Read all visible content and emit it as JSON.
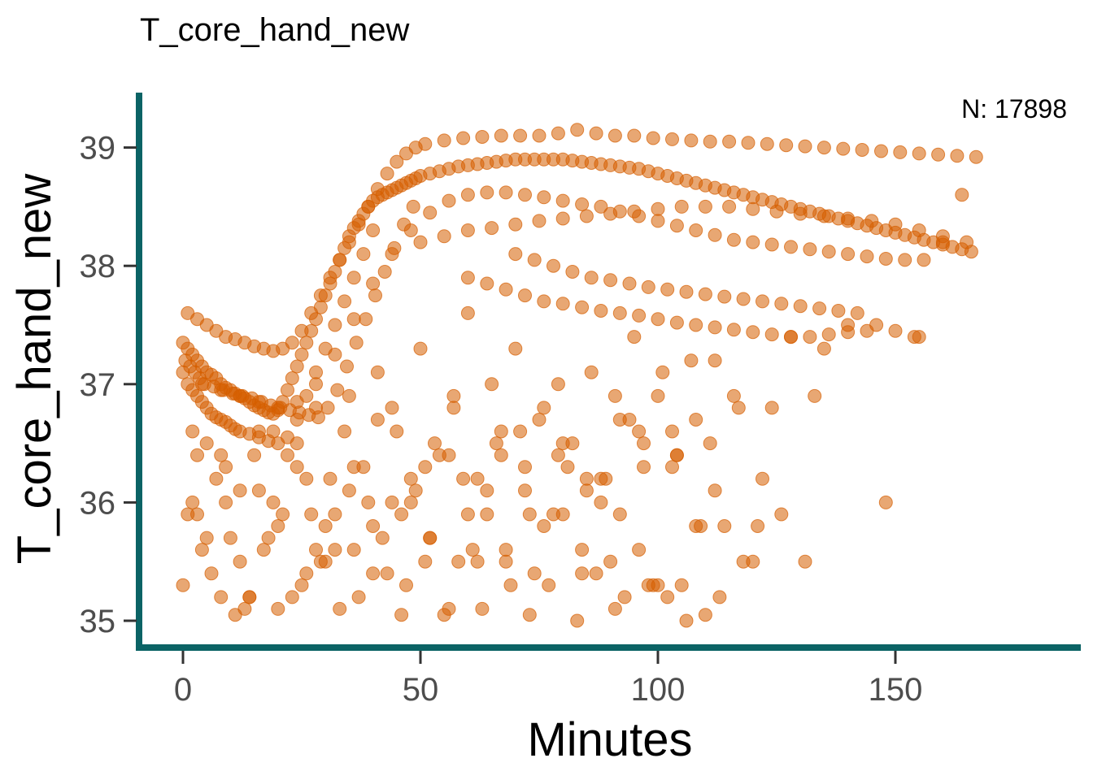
{
  "chart_data": {
    "type": "scatter",
    "title": "T_core_hand_new",
    "xlabel": "Minutes",
    "ylabel": "T_core_hand_new",
    "annotation": "N: 17898",
    "xlim": [
      -8,
      190
    ],
    "ylim": [
      34.8,
      39.45
    ],
    "x_ticks": [
      0,
      50,
      100,
      150
    ],
    "y_ticks": [
      35,
      36,
      37,
      38,
      39
    ],
    "x_tick_labels": [
      "0",
      "50",
      "100",
      "150"
    ],
    "y_tick_labels": [
      "35",
      "36",
      "37",
      "38",
      "39"
    ],
    "grid": false,
    "legend": "none",
    "colors": {
      "points": "#d55e00",
      "axis": "#0b6365",
      "tick_label": "#4d4d4d"
    },
    "series": [
      {
        "x": [
          0,
          1,
          2,
          3,
          4,
          5,
          6,
          7,
          8,
          9,
          10,
          11,
          12,
          13,
          14,
          15,
          16,
          17,
          18,
          19,
          20,
          21,
          22,
          23,
          24,
          25,
          26,
          27,
          28,
          29,
          30,
          31,
          32,
          33,
          34,
          35,
          36,
          37,
          38,
          39,
          40,
          41,
          42,
          43,
          44,
          45,
          46,
          47,
          48,
          49,
          50,
          52,
          54,
          56,
          58,
          60,
          62,
          64,
          66,
          68,
          70,
          72,
          74,
          76,
          78,
          80,
          82,
          84,
          86,
          88,
          90,
          92,
          94,
          96,
          98,
          100,
          102,
          104,
          106,
          108,
          110,
          112,
          114,
          116,
          118,
          120,
          122,
          124,
          126,
          128,
          130,
          132,
          134,
          136,
          138,
          140,
          142,
          144,
          146,
          148,
          150,
          152,
          154,
          156,
          158,
          160,
          162,
          164,
          166,
          1,
          3,
          5,
          7,
          9,
          11,
          13,
          15,
          17,
          19,
          21,
          23,
          25,
          27,
          29,
          31,
          33,
          35,
          37,
          39,
          41,
          43,
          45,
          47,
          49,
          51,
          55,
          59,
          63,
          67,
          71,
          75,
          79,
          83,
          87,
          91,
          95,
          99,
          103,
          107,
          111,
          115,
          119,
          123,
          127,
          131,
          135,
          139,
          143,
          147,
          151,
          155,
          159,
          163,
          167,
          60,
          64,
          68,
          72,
          76,
          80,
          84,
          88,
          92,
          96,
          100,
          104,
          108,
          112,
          116,
          120,
          124,
          128,
          132,
          136,
          140,
          144,
          70,
          74,
          78,
          82,
          86,
          90,
          94,
          98,
          102,
          106,
          110,
          114,
          118,
          122,
          126,
          130,
          134,
          138,
          142,
          146,
          150,
          154,
          0,
          4,
          8,
          12,
          16,
          20,
          24,
          28,
          32,
          36,
          40,
          44,
          48,
          52,
          56,
          60,
          64,
          68,
          72,
          76,
          80,
          84,
          88,
          92,
          96,
          100,
          104,
          108,
          112,
          116,
          120,
          124,
          128,
          132,
          136,
          140,
          144,
          148,
          152,
          156,
          160,
          164,
          1,
          2,
          3,
          4,
          5,
          6,
          7,
          8,
          9,
          10,
          11,
          12,
          14,
          16,
          18,
          20,
          22,
          24,
          26,
          28,
          30,
          32,
          34,
          36,
          38,
          40,
          0.5,
          1.5,
          2.5,
          3.5,
          4.5,
          6.5,
          8.5,
          10.5,
          12.5,
          14.5,
          16.5,
          18.5,
          20.5,
          22.5,
          24.5,
          26.5,
          28.5,
          30.5,
          32.5,
          34.5,
          36.5,
          38.5,
          40.5,
          42.5,
          44.5,
          46.5,
          48.5,
          50,
          55,
          60,
          65,
          70,
          75,
          80,
          85,
          90,
          95,
          100,
          105,
          110,
          115,
          120,
          125,
          130,
          135,
          140,
          145,
          150,
          155,
          160,
          165
        ],
        "y": [
          37.35,
          37.3,
          37.25,
          37.2,
          37.15,
          37.1,
          37.08,
          37.05,
          37.0,
          36.97,
          36.95,
          36.92,
          36.9,
          36.88,
          36.85,
          36.82,
          36.8,
          36.78,
          36.76,
          36.75,
          36.78,
          36.85,
          36.95,
          37.05,
          37.15,
          37.25,
          37.35,
          37.45,
          37.55,
          37.65,
          37.75,
          37.85,
          37.95,
          38.05,
          38.15,
          38.25,
          38.32,
          38.38,
          38.44,
          38.5,
          38.55,
          38.58,
          38.6,
          38.62,
          38.64,
          38.66,
          38.68,
          38.7,
          38.72,
          38.74,
          38.76,
          38.78,
          38.8,
          38.82,
          38.84,
          38.85,
          38.86,
          38.87,
          38.88,
          38.89,
          38.9,
          38.9,
          38.9,
          38.9,
          38.9,
          38.9,
          38.89,
          38.88,
          38.87,
          38.86,
          38.85,
          38.84,
          38.83,
          38.82,
          38.8,
          38.78,
          38.76,
          38.74,
          38.72,
          38.7,
          38.68,
          38.66,
          38.64,
          38.62,
          38.6,
          38.58,
          38.56,
          38.54,
          38.52,
          38.5,
          38.48,
          38.46,
          38.44,
          38.42,
          38.4,
          38.38,
          38.36,
          38.34,
          38.32,
          38.3,
          38.28,
          38.26,
          38.24,
          38.22,
          38.2,
          38.18,
          38.16,
          38.14,
          38.12,
          37.6,
          37.55,
          37.5,
          37.45,
          37.4,
          37.38,
          37.35,
          37.32,
          37.3,
          37.28,
          37.3,
          37.35,
          37.45,
          37.6,
          37.75,
          37.9,
          38.05,
          38.2,
          38.35,
          38.5,
          38.65,
          38.78,
          38.88,
          38.95,
          39.0,
          39.03,
          39.06,
          39.08,
          39.09,
          39.1,
          39.1,
          39.1,
          39.12,
          39.15,
          39.12,
          39.1,
          39.1,
          39.08,
          39.07,
          39.06,
          39.05,
          39.05,
          39.04,
          39.03,
          39.02,
          39.01,
          39.0,
          38.99,
          38.98,
          38.97,
          38.96,
          38.95,
          38.94,
          38.93,
          38.92,
          37.9,
          37.85,
          37.8,
          37.75,
          37.7,
          37.68,
          37.65,
          37.62,
          37.6,
          37.58,
          37.55,
          37.52,
          37.5,
          37.48,
          37.46,
          37.44,
          37.42,
          37.4,
          37.4,
          37.42,
          37.44,
          37.45,
          38.1,
          38.05,
          38.0,
          37.95,
          37.9,
          37.88,
          37.85,
          37.82,
          37.8,
          37.78,
          37.76,
          37.74,
          37.72,
          37.7,
          37.68,
          37.66,
          37.64,
          37.62,
          37.6,
          37.5,
          37.45,
          37.4,
          37.1,
          37.0,
          36.95,
          36.9,
          36.85,
          36.8,
          36.85,
          37.0,
          37.25,
          37.55,
          37.85,
          38.1,
          38.3,
          38.45,
          38.55,
          38.6,
          38.62,
          38.62,
          38.6,
          38.58,
          38.55,
          38.52,
          38.5,
          38.46,
          38.42,
          38.38,
          38.34,
          38.3,
          38.26,
          38.22,
          38.2,
          38.18,
          38.16,
          38.14,
          38.12,
          38.1,
          38.08,
          38.06,
          38.05,
          38.05,
          38.2,
          38.6,
          37.0,
          36.95,
          36.9,
          36.85,
          36.8,
          36.75,
          36.72,
          36.7,
          36.68,
          36.65,
          36.62,
          36.6,
          36.58,
          36.55,
          36.52,
          36.5,
          36.55,
          36.7,
          36.9,
          37.1,
          37.3,
          37.5,
          37.7,
          37.9,
          38.1,
          38.3,
          37.2,
          37.15,
          37.1,
          37.05,
          37.0,
          36.98,
          36.95,
          36.92,
          36.9,
          36.88,
          36.85,
          36.82,
          36.8,
          36.78,
          36.76,
          36.74,
          36.72,
          36.8,
          36.95,
          37.15,
          37.35,
          37.55,
          37.75,
          37.95,
          38.15,
          38.35,
          38.5,
          38.2,
          38.25,
          38.3,
          38.32,
          38.35,
          38.38,
          38.4,
          38.42,
          38.44,
          38.46,
          38.48,
          38.5,
          38.5,
          38.5,
          38.48,
          38.46,
          38.44,
          38.42,
          38.4,
          38.38,
          38.35,
          38.3,
          38.25,
          38.2
        ]
      },
      {
        "x": [
          0,
          2,
          3,
          5,
          6,
          8,
          9,
          11,
          12,
          14,
          16,
          18,
          20,
          22,
          25,
          27,
          28,
          30,
          31,
          33,
          35,
          36,
          38,
          40,
          41,
          43,
          45,
          46,
          48,
          50,
          52,
          53,
          55,
          57,
          58,
          60,
          62,
          63,
          65,
          67,
          68,
          70,
          72,
          73,
          75,
          77,
          79,
          80,
          82,
          84,
          86,
          88,
          90,
          92,
          93,
          95,
          97,
          99,
          101,
          103,
          105,
          108,
          110,
          112,
          114,
          117,
          120,
          122,
          124,
          126,
          128,
          131,
          133,
          135,
          140,
          148,
          155,
          1,
          4,
          7,
          10,
          13,
          15,
          17,
          19,
          21,
          23,
          24,
          26,
          29,
          32,
          34,
          37,
          39,
          42,
          44,
          47,
          49,
          51,
          54,
          56,
          59,
          61,
          64,
          66,
          69,
          71,
          74,
          76,
          78,
          81,
          83,
          85,
          87,
          89,
          91,
          94,
          96,
          98,
          100,
          102,
          104,
          106,
          107,
          109,
          111,
          113,
          116,
          118,
          121,
          2,
          5,
          8,
          12,
          16,
          20,
          24,
          28,
          32,
          36,
          40,
          44,
          48,
          52,
          56,
          60,
          64,
          68,
          72,
          76,
          80,
          84,
          88,
          92,
          96,
          100,
          104,
          108,
          112,
          3,
          9,
          14,
          19,
          26,
          30,
          35,
          41,
          46,
          51,
          57,
          62,
          67,
          73,
          79,
          85,
          91,
          97,
          103
        ],
        "y": [
          35.3,
          36.6,
          35.9,
          36.5,
          35.4,
          35.2,
          36.3,
          35.05,
          36.1,
          35.2,
          36.6,
          35.7,
          35.1,
          36.4,
          35.3,
          35.9,
          36.8,
          35.5,
          36.2,
          35.1,
          36.9,
          35.6,
          36.3,
          35.8,
          37.1,
          35.4,
          36.6,
          35.05,
          36.0,
          37.3,
          35.7,
          36.5,
          35.05,
          36.9,
          35.5,
          37.6,
          36.2,
          35.1,
          37.0,
          36.4,
          35.6,
          37.3,
          36.1,
          35.05,
          36.7,
          35.3,
          37.0,
          35.9,
          36.5,
          35.4,
          37.1,
          36.0,
          35.5,
          36.7,
          35.2,
          37.4,
          36.3,
          35.3,
          37.1,
          36.6,
          35.3,
          36.7,
          35.05,
          37.2,
          35.8,
          36.8,
          35.5,
          36.2,
          36.8,
          35.9,
          37.4,
          35.5,
          36.9,
          37.3,
          37.5,
          36.0,
          37.4,
          35.9,
          35.6,
          36.2,
          35.7,
          35.1,
          36.4,
          35.6,
          36.0,
          35.9,
          35.2,
          36.3,
          35.4,
          35.5,
          35.6,
          36.6,
          35.2,
          36.0,
          35.7,
          36.8,
          35.3,
          36.1,
          35.5,
          36.4,
          35.1,
          36.2,
          35.6,
          35.9,
          36.5,
          35.3,
          36.6,
          35.4,
          36.8,
          35.9,
          36.3,
          35.0,
          36.1,
          35.4,
          36.2,
          35.1,
          36.7,
          35.6,
          35.3,
          36.9,
          35.2,
          36.4,
          35.0,
          37.2,
          35.8,
          36.5,
          35.2,
          36.9,
          35.5,
          35.8,
          36.0,
          35.7,
          36.4,
          35.5,
          36.1,
          35.8,
          36.5,
          35.6,
          35.9,
          36.3,
          35.4,
          36.0,
          36.2,
          35.7,
          36.4,
          35.9,
          36.1,
          35.5,
          36.3,
          35.8,
          36.5,
          35.6,
          36.2,
          35.9,
          36.6,
          35.3,
          36.4,
          35.8,
          36.1,
          36.4,
          36.0,
          35.2,
          36.6,
          36.2,
          35.8,
          36.1,
          36.7,
          35.9,
          36.3,
          36.8,
          35.5,
          36.6,
          35.9,
          36.4,
          36.2,
          36.9,
          36.5,
          36.3
        ]
      }
    ]
  }
}
